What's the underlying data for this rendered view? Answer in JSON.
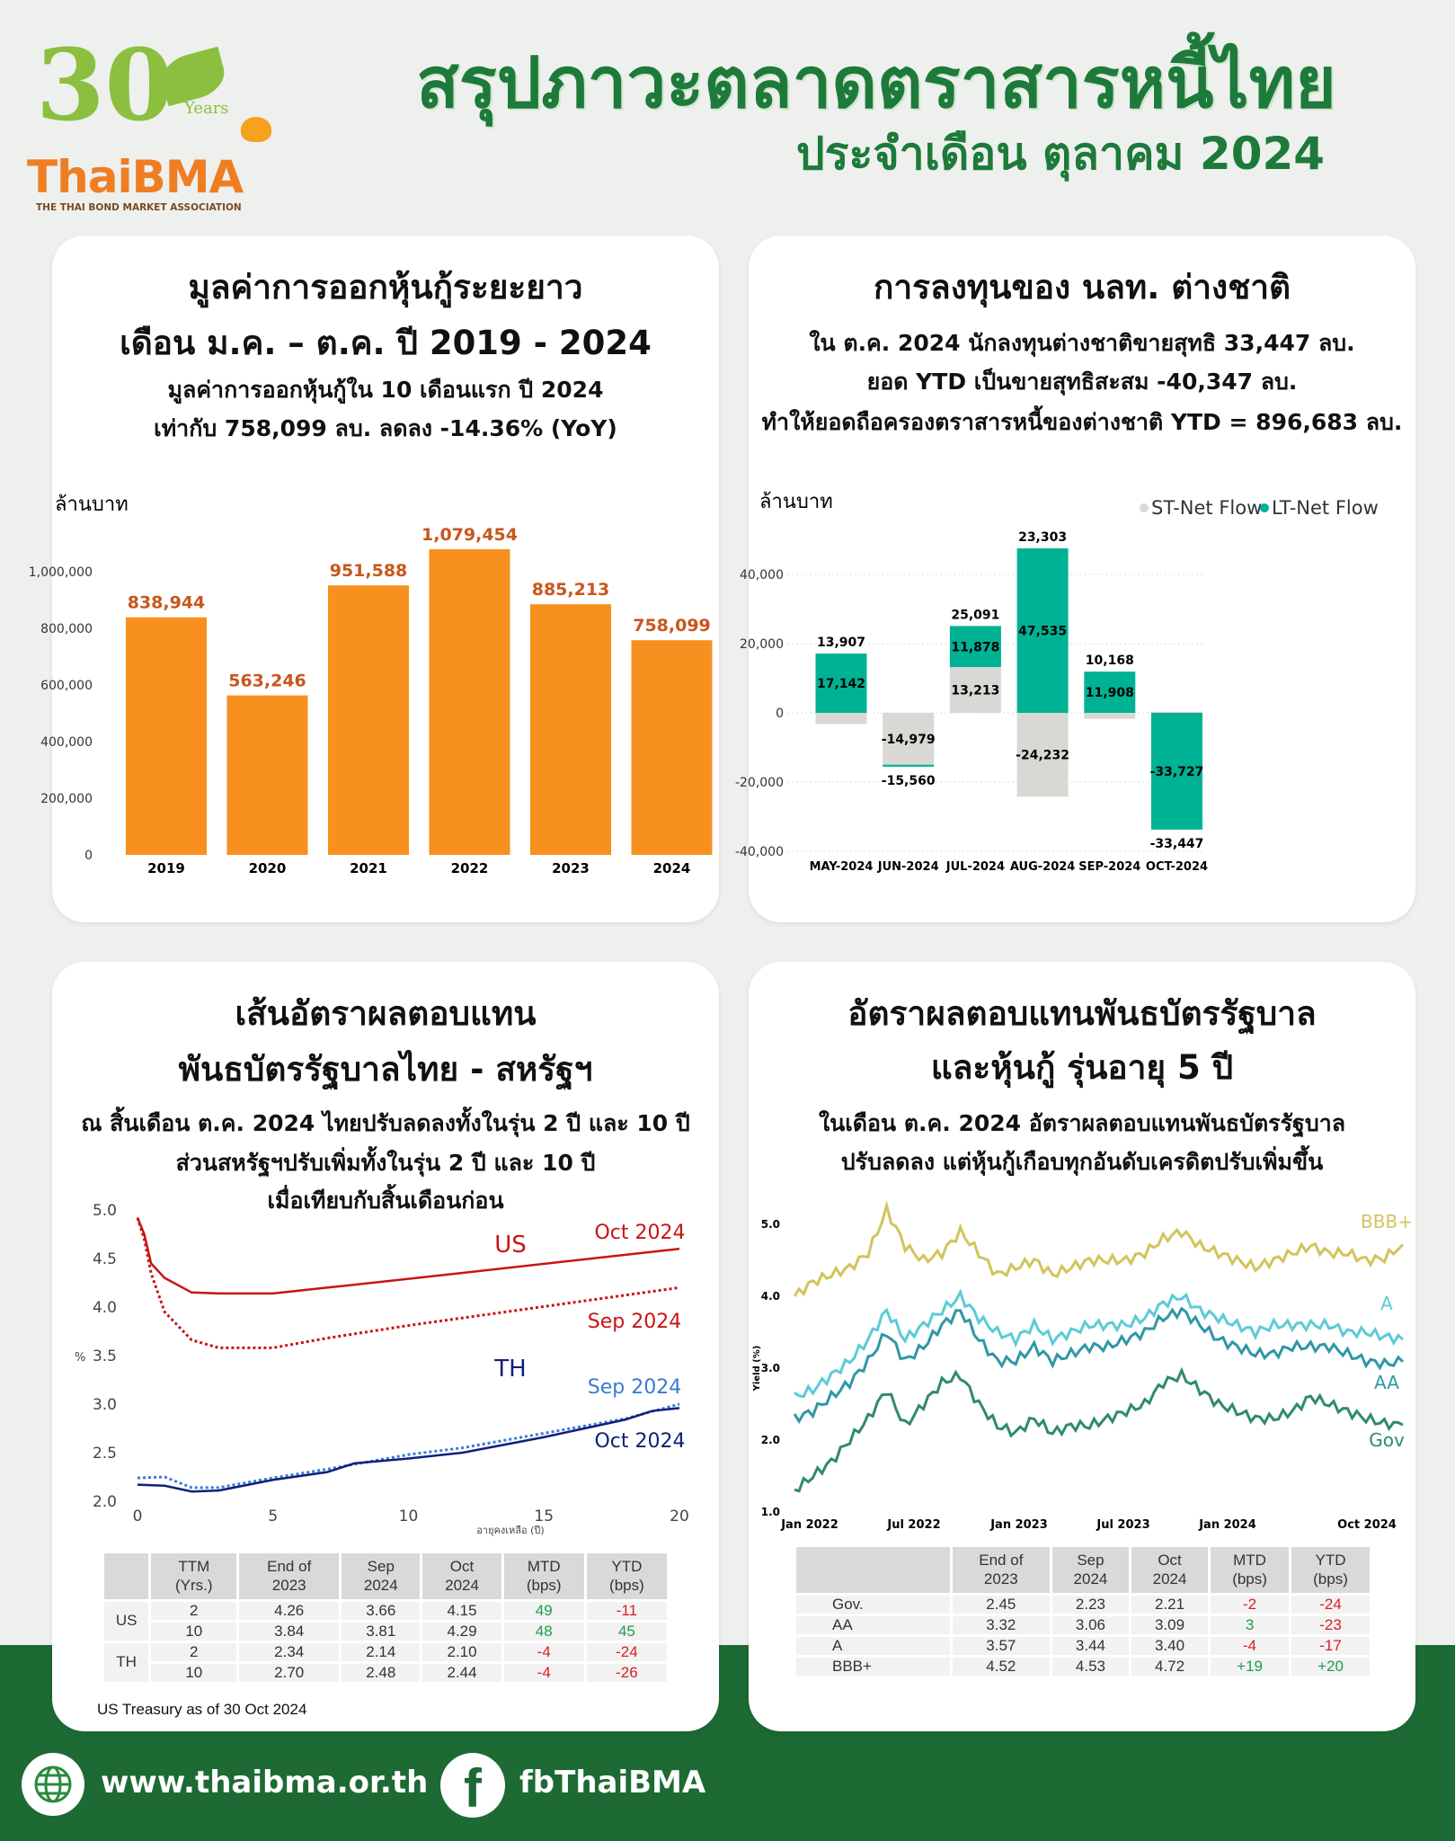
{
  "header": {
    "title": "สรุปภาวะตลาดตราสารหนี้ไทย",
    "subtitle": "ประจำเดือน ตุลาคม 2024"
  },
  "logo": {
    "number": "30",
    "years": "Years",
    "brand": "ThaiBMA",
    "tagline": "THE THAI BOND MARKET ASSOCIATION"
  },
  "colors": {
    "green": "#1e7a3a",
    "orange": "#f7901e",
    "teal": "#00b294",
    "gray": "#d9d8d4"
  },
  "issuance": {
    "title1": "มูลค่าการออกหุ้นกู้ระยะยาว",
    "title2": "เดือน ม.ค. – ต.ค. ปี 2019 - 2024",
    "line1": "มูลค่าการออกหุ้นกู้ใน 10 เดือนแรก ปี 2024",
    "line2": "เท่ากับ 758,099 ลบ. ลดลง -14.36% (YoY)"
  },
  "foreign": {
    "title": "การลงทุนของ นลท. ต่างชาติ",
    "line1": "ใน ต.ค. 2024 นักลงทุนต่างชาติขายสุทธิ 33,447 ลบ.",
    "line2": "ยอด YTD เป็นขายสุทธิสะสม -40,347 ลบ.",
    "line3": "ทำให้ยอดถือครองตราสารหนี้ของต่างชาติ YTD = 896,683 ลบ."
  },
  "curve": {
    "title1": "เส้นอัตราผลตอบแทน",
    "title2": "พันธบัตรรัฐบาลไทย - สหรัฐฯ",
    "line1": "ณ สิ้นเดือน ต.ค. 2024 ไทยปรับลดลงทั้งในรุ่น 2 ปี และ 10 ปี",
    "line2": "ส่วนสหรัฐฯปรับเพิ่มทั้งในรุ่น 2 ปี และ 10 ปี",
    "line3": "เมื่อเทียบกับสิ้นเดือนก่อน",
    "table": {
      "headers": [
        "",
        "TTM\n(Yrs.)",
        "End of\n2023",
        "Sep\n2024",
        "Oct\n2024",
        "MTD\n(bps)",
        "YTD\n(bps)"
      ],
      "rows": [
        [
          "US",
          "2",
          "4.26",
          "3.66",
          "4.15",
          "49",
          "-11"
        ],
        [
          "",
          "10",
          "3.84",
          "3.81",
          "4.29",
          "48",
          "45"
        ],
        [
          "TH",
          "2",
          "2.34",
          "2.14",
          "2.10",
          "-4",
          "-24"
        ],
        [
          "",
          "10",
          "2.70",
          "2.48",
          "2.44",
          "-4",
          "-26"
        ]
      ]
    },
    "footnote": "US Treasury as of 30 Oct 2024"
  },
  "corp": {
    "title1": "อัตราผลตอบแทนพันธบัตรรัฐบาล",
    "title2": "และหุ้นกู้ รุ่นอายุ 5 ปี",
    "line1": "ในเดือน ต.ค. 2024 อัตราผลตอบแทนพันธบัตรรัฐบาล",
    "line2": "ปรับลดลง แต่หุ้นกู้เกือบทุกอันดับเครดิตปรับเพิ่มขึ้น",
    "table": {
      "headers": [
        "",
        "End of\n2023",
        "Sep\n2024",
        "Oct\n2024",
        "MTD\n(bps)",
        "YTD\n(bps)"
      ],
      "rows": [
        [
          "Gov.",
          "2.45",
          "2.23",
          "2.21",
          "-2",
          "-24"
        ],
        [
          "AA",
          "3.32",
          "3.06",
          "3.09",
          "3",
          "-23"
        ],
        [
          "A",
          "3.57",
          "3.44",
          "3.40",
          "-4",
          "-17"
        ],
        [
          "BBB+",
          "4.52",
          "4.53",
          "4.72",
          "+19",
          "+20"
        ]
      ]
    }
  },
  "footer": {
    "website": "www.thaibma.or.th",
    "facebook": "fbThaiBMA"
  },
  "chart_data": [
    {
      "type": "bar",
      "title": "มูลค่าการออกหุ้นกู้ระยะยาว",
      "ylabel": "ล้านบาท",
      "categories": [
        "2019",
        "2020",
        "2021",
        "2022",
        "2023",
        "2024"
      ],
      "values": [
        838944,
        563246,
        951588,
        1079454,
        885213,
        758099
      ],
      "labels": [
        "838,944",
        "563,246",
        "951,588",
        "1,079,454",
        "885,213",
        "758,099"
      ],
      "ylim": [
        0,
        1000000
      ],
      "yticks": [
        0,
        200000,
        400000,
        600000,
        800000,
        1000000
      ],
      "ytick_labels": [
        "0",
        "200,000",
        "400,000",
        "600,000",
        "800,000",
        "1,000,000"
      ]
    },
    {
      "type": "bar",
      "stacked": true,
      "ylabel": "ล้านบาท",
      "categories": [
        "MAY-2024",
        "JUN-2024",
        "JUL-2024",
        "AUG-2024",
        "SEP-2024",
        "OCT-2024"
      ],
      "series": [
        {
          "name": "ST-Net Flow",
          "color": "#d9d8d4",
          "values": [
            -3235,
            -14979,
            13213,
            -24232,
            -1740,
            280
          ],
          "labels": [
            "",
            "-14,979",
            "13,213",
            "-24,232",
            "",
            ""
          ]
        },
        {
          "name": "LT-Net Flow",
          "color": "#00b294",
          "values": [
            17142,
            -581,
            11878,
            47535,
            11908,
            -33727
          ],
          "labels": [
            "17,142",
            "",
            "11,878",
            "47,535",
            "11,908",
            "-33,727"
          ]
        }
      ],
      "totals": [
        "13,907",
        "-15,560",
        "25,091",
        "23,303",
        "10,168",
        "-33,447"
      ],
      "total_values": [
        13907,
        -15560,
        25091,
        23303,
        10168,
        -33447
      ],
      "ylim": [
        -40000,
        50000
      ],
      "yticks": [
        -40000,
        -20000,
        0,
        20000,
        40000
      ],
      "ytick_labels": [
        "-40,000",
        "-20,000",
        "0",
        "20,000",
        "40,000"
      ],
      "legend": "top-right"
    },
    {
      "type": "line",
      "ylabel": "%",
      "xlabel": "อายุคงเหลือ (ปี)",
      "xlim": [
        0,
        20
      ],
      "ylim": [
        2.0,
        5.0
      ],
      "xticks": [
        "0",
        "5",
        "10",
        "15",
        "20"
      ],
      "yticks": [
        "2.0",
        "2.5",
        "3.0",
        "3.5",
        "4.0",
        "4.5",
        "5.0"
      ],
      "groups": {
        "US": "US",
        "TH": "TH"
      },
      "series": [
        {
          "name": "Oct 2024",
          "group": "US",
          "color": "#c81414",
          "dash": false,
          "x": [
            0,
            0.25,
            0.5,
            1,
            2,
            3,
            5,
            7,
            10,
            20
          ],
          "y": [
            4.92,
            4.75,
            4.45,
            4.3,
            4.15,
            4.14,
            4.14,
            4.2,
            4.29,
            4.6
          ]
        },
        {
          "name": "Sep 2024",
          "group": "US",
          "color": "#c81414",
          "dash": true,
          "x": [
            0,
            0.25,
            0.5,
            1,
            2,
            3,
            5,
            7,
            10,
            20
          ],
          "y": [
            4.92,
            4.7,
            4.35,
            3.95,
            3.66,
            3.58,
            3.58,
            3.68,
            3.81,
            4.2
          ]
        },
        {
          "name": "Sep 2024",
          "group": "TH",
          "color": "#3a7bd5",
          "dash": true,
          "x": [
            0,
            1,
            2,
            3,
            5,
            7,
            10,
            12,
            15,
            18,
            20
          ],
          "y": [
            2.24,
            2.25,
            2.14,
            2.14,
            2.24,
            2.33,
            2.48,
            2.55,
            2.7,
            2.85,
            3.0
          ]
        },
        {
          "name": "Oct 2024",
          "group": "TH",
          "color": "#0f1f7a",
          "dash": false,
          "x": [
            0,
            1,
            2,
            3,
            5,
            7,
            8,
            10,
            12,
            15,
            18,
            19,
            20
          ],
          "y": [
            2.17,
            2.16,
            2.1,
            2.11,
            2.22,
            2.3,
            2.39,
            2.44,
            2.5,
            2.66,
            2.84,
            2.93,
            2.96
          ]
        }
      ]
    },
    {
      "type": "line",
      "ylabel": "Yield (%)",
      "xticks": [
        "Jan 2022",
        "Jul 2022",
        "Jan 2023",
        "Jul 2023",
        "Jan 2024",
        "Oct 2024"
      ],
      "ylim": [
        1.0,
        5.5
      ],
      "yticks": [
        "1.0",
        "2.0",
        "3.0",
        "4.0",
        "5.0"
      ],
      "x": [
        "2022-01",
        "2022-02",
        "2022-03",
        "2022-04",
        "2022-05",
        "2022-06",
        "2022-07",
        "2022-08",
        "2022-09",
        "2022-10",
        "2022-11",
        "2022-12",
        "2023-01",
        "2023-02",
        "2023-03",
        "2023-04",
        "2023-05",
        "2023-06",
        "2023-07",
        "2023-08",
        "2023-09",
        "2023-10",
        "2023-11",
        "2023-12",
        "2024-01",
        "2024-02",
        "2024-03",
        "2024-04",
        "2024-05",
        "2024-06",
        "2024-07",
        "2024-08",
        "2024-09",
        "2024-10"
      ],
      "series": [
        {
          "name": "BBB+",
          "color": "#d2c45a",
          "y": [
            4.0,
            4.2,
            4.3,
            4.4,
            4.6,
            5.2,
            4.7,
            4.5,
            4.6,
            4.9,
            4.6,
            4.3,
            4.4,
            4.5,
            4.3,
            4.4,
            4.5,
            4.5,
            4.5,
            4.6,
            4.8,
            4.9,
            4.7,
            4.6,
            4.5,
            4.4,
            4.5,
            4.6,
            4.7,
            4.6,
            4.6,
            4.5,
            4.53,
            4.72
          ]
        },
        {
          "name": "A",
          "color": "#5ccbd6",
          "y": [
            2.6,
            2.7,
            2.9,
            3.1,
            3.4,
            3.8,
            3.4,
            3.6,
            3.8,
            4.0,
            3.7,
            3.5,
            3.4,
            3.6,
            3.4,
            3.5,
            3.6,
            3.6,
            3.6,
            3.7,
            3.9,
            4.0,
            3.8,
            3.7,
            3.6,
            3.5,
            3.6,
            3.6,
            3.6,
            3.6,
            3.5,
            3.5,
            3.44,
            3.4
          ]
        },
        {
          "name": "AA",
          "color": "#2f97a6",
          "y": [
            2.3,
            2.4,
            2.6,
            2.8,
            3.1,
            3.5,
            3.1,
            3.3,
            3.6,
            3.8,
            3.4,
            3.1,
            3.1,
            3.3,
            3.1,
            3.2,
            3.3,
            3.3,
            3.4,
            3.5,
            3.7,
            3.8,
            3.6,
            3.4,
            3.3,
            3.2,
            3.2,
            3.3,
            3.3,
            3.3,
            3.2,
            3.1,
            3.06,
            3.09
          ]
        },
        {
          "name": "Gov",
          "color": "#2e8a72",
          "y": [
            1.3,
            1.5,
            1.7,
            2.0,
            2.3,
            2.7,
            2.2,
            2.5,
            2.8,
            2.9,
            2.5,
            2.2,
            2.1,
            2.3,
            2.1,
            2.2,
            2.2,
            2.3,
            2.4,
            2.5,
            2.8,
            2.9,
            2.7,
            2.5,
            2.4,
            2.3,
            2.3,
            2.4,
            2.6,
            2.5,
            2.4,
            2.3,
            2.23,
            2.21
          ]
        }
      ]
    }
  ]
}
